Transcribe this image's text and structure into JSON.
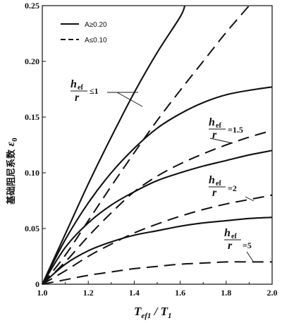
{
  "chart_data": {
    "type": "line",
    "xlabel": "T_ef1 / T_1",
    "ylabel": "基础阻尼系数 ε₀",
    "xlim": [
      1.0,
      2.0
    ],
    "ylim": [
      0,
      0.25
    ],
    "grid": false,
    "legend_position": "top-left",
    "x_ticks": [
      "1.0",
      "1.2",
      "1.4",
      "1.6",
      "1.8",
      "2.0"
    ],
    "y_ticks": [
      "0",
      "0.05",
      "0.10",
      "0.15",
      "0.20",
      "0.25"
    ],
    "legend": [
      {
        "label": "A≥0.20",
        "style": "solid"
      },
      {
        "label": "A≤0.10",
        "style": "dashed"
      }
    ],
    "annotations": [
      {
        "label": "h_ef / r ≤1",
        "text": "≤1"
      },
      {
        "label": "h_ef / r =1.5",
        "text": "=1.5"
      },
      {
        "label": "h_ef / r =2",
        "text": "=2"
      },
      {
        "label": "h_ef / r =5",
        "text": "=5"
      }
    ],
    "series": [
      {
        "group": "h/r≤1",
        "style": "solid",
        "x": [
          1.0,
          1.1,
          1.2,
          1.3,
          1.4,
          1.5,
          1.6,
          1.62
        ],
        "y": [
          0,
          0.045,
          0.09,
          0.132,
          0.172,
          0.208,
          0.24,
          0.25
        ]
      },
      {
        "group": "h/r≤1",
        "style": "dashed",
        "x": [
          1.0,
          1.1,
          1.2,
          1.3,
          1.4,
          1.5,
          1.6,
          1.7,
          1.8,
          1.9
        ],
        "y": [
          0,
          0.026,
          0.057,
          0.088,
          0.118,
          0.147,
          0.174,
          0.2,
          0.226,
          0.25
        ]
      },
      {
        "group": "h/r=1.5",
        "style": "solid",
        "x": [
          1.0,
          1.1,
          1.2,
          1.3,
          1.4,
          1.5,
          1.6,
          1.7,
          1.8,
          1.9,
          2.0
        ],
        "y": [
          0,
          0.04,
          0.073,
          0.1,
          0.122,
          0.14,
          0.153,
          0.163,
          0.17,
          0.174,
          0.177
        ]
      },
      {
        "group": "h/r=1.5",
        "style": "dashed",
        "x": [
          1.0,
          1.1,
          1.2,
          1.3,
          1.4,
          1.5,
          1.6,
          1.7,
          1.8,
          1.9,
          2.0
        ],
        "y": [
          0,
          0.02,
          0.043,
          0.064,
          0.083,
          0.097,
          0.108,
          0.117,
          0.125,
          0.132,
          0.138
        ]
      },
      {
        "group": "h/r=2",
        "style": "solid",
        "x": [
          1.0,
          1.1,
          1.2,
          1.3,
          1.4,
          1.5,
          1.6,
          1.7,
          1.8,
          1.9,
          2.0
        ],
        "y": [
          0,
          0.033,
          0.055,
          0.071,
          0.083,
          0.093,
          0.1,
          0.106,
          0.111,
          0.116,
          0.12
        ]
      },
      {
        "group": "h/r=2",
        "style": "dashed",
        "x": [
          1.0,
          1.1,
          1.2,
          1.3,
          1.4,
          1.5,
          1.6,
          1.7,
          1.8,
          1.9,
          2.0
        ],
        "y": [
          0,
          0.012,
          0.025,
          0.036,
          0.046,
          0.054,
          0.061,
          0.067,
          0.072,
          0.076,
          0.08
        ]
      },
      {
        "group": "h/r=5",
        "style": "solid",
        "x": [
          1.0,
          1.1,
          1.2,
          1.3,
          1.4,
          1.5,
          1.6,
          1.7,
          1.8,
          1.9,
          2.0
        ],
        "y": [
          0,
          0.018,
          0.03,
          0.038,
          0.044,
          0.048,
          0.052,
          0.055,
          0.057,
          0.059,
          0.06
        ]
      },
      {
        "group": "h/r=5",
        "style": "dashed",
        "x": [
          1.0,
          1.1,
          1.2,
          1.3,
          1.4,
          1.5,
          1.6,
          1.7,
          1.8,
          1.9,
          2.0
        ],
        "y": [
          0,
          0.004,
          0.008,
          0.011,
          0.014,
          0.016,
          0.018,
          0.019,
          0.02,
          0.02,
          0.02
        ]
      }
    ]
  }
}
